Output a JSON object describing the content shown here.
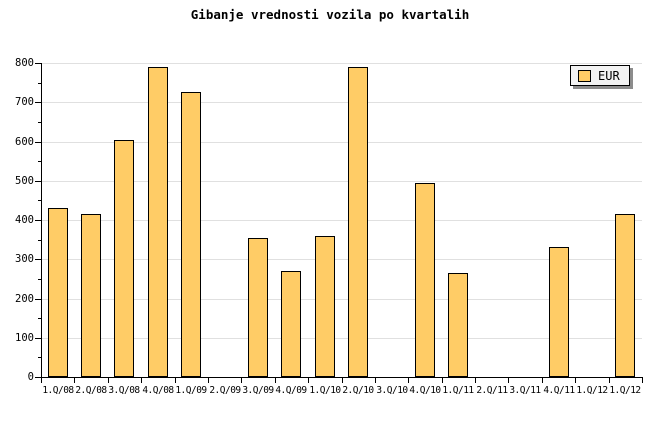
{
  "title": "Gibanje vrednosti vozila po kvartalih",
  "legend": {
    "label": "EUR",
    "swatch_color": "#FFCC66"
  },
  "colors": {
    "background": "#FFFFFF",
    "bar_fill": "#FFCC66",
    "bar_border": "#000000",
    "gridline": "#E0E0E0",
    "axis": "#000000",
    "text": "#000000",
    "legend_bg": "#F2F2F2",
    "legend_shadow": "#8C8C8C"
  },
  "chart_data": {
    "type": "bar",
    "title": "Gibanje vrednosti vozila po kvartalih",
    "categories": [
      "1.Q/08",
      "2.Q/08",
      "3.Q/08",
      "4.Q/08",
      "1.Q/09",
      "2.Q/09",
      "3.Q/09",
      "4.Q/09",
      "1.Q/10",
      "2.Q/10",
      "3.Q/10",
      "4.Q/10",
      "1.Q/11",
      "2.Q/11",
      "3.Q/11",
      "4.Q/11",
      "1.Q/12",
      "1.Q/12"
    ],
    "values": [
      430,
      415,
      605,
      790,
      725,
      null,
      355,
      270,
      360,
      790,
      null,
      495,
      265,
      null,
      null,
      330,
      null,
      415
    ],
    "xlabel": "",
    "ylabel": "",
    "ylim": [
      0,
      800
    ],
    "ytick_step": 100,
    "yminor_tick_step": 50,
    "grid": true,
    "legend_entries": [
      "EUR"
    ],
    "legend_position": "top-right"
  }
}
